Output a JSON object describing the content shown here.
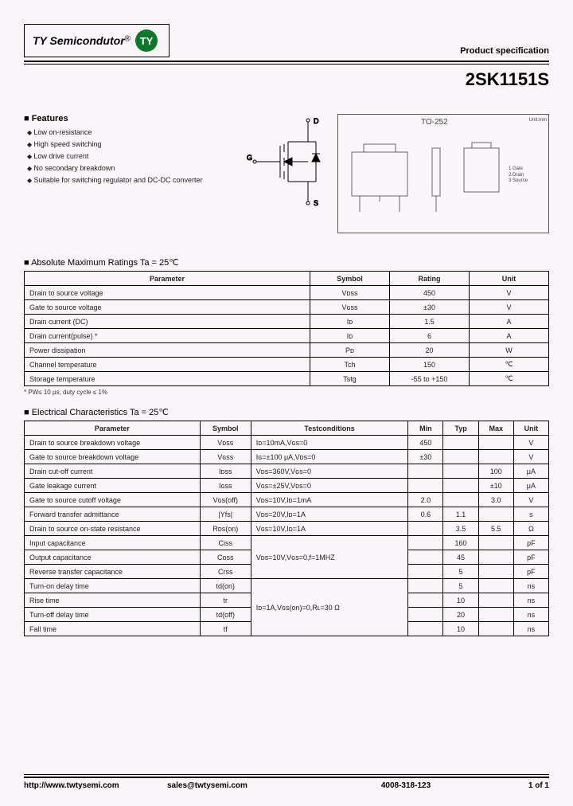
{
  "header": {
    "company": "TY Semicondutor",
    "reg_mark": "®",
    "logo_abbrev": "TY",
    "spec_label": "Product specification",
    "part_number": "2SK1151S"
  },
  "features": {
    "title": "Features",
    "items": [
      "Low on-resistance",
      "High speed switching",
      "Low drive current",
      "No secondary breakdown",
      "Suitable for switching regulator and DC-DC converter"
    ]
  },
  "symbol": {
    "d": "D",
    "g": "G",
    "s": "S"
  },
  "package": {
    "name": "TO-252",
    "unit_label": "Unit:mm",
    "pins": [
      {
        "n": "1",
        "name": "Gate"
      },
      {
        "n": "2",
        "name": "Drain"
      },
      {
        "n": "3",
        "name": "Source"
      }
    ]
  },
  "abs": {
    "title": "Absolute Maximum Ratings Ta = 25℃",
    "headers": [
      "Parameter",
      "Symbol",
      "Rating",
      "Unit"
    ],
    "rows": [
      [
        "Drain to source voltage",
        "Vᴅss",
        "450",
        "V"
      ],
      [
        "Gate to source voltage",
        "Vɢss",
        "±30",
        "V"
      ],
      [
        "Drain current (DC)",
        "Iᴅ",
        "1.5",
        "A"
      ],
      [
        "Drain current(pulse) *",
        "Iᴅ",
        "6",
        "A"
      ],
      [
        "Power dissipation",
        "Pᴅ",
        "20",
        "W"
      ],
      [
        "Channel temperature",
        "Tch",
        "150",
        "℃"
      ],
      [
        "Storage temperature",
        "Tstg",
        "-55 to +150",
        "℃"
      ]
    ],
    "note": "*  PW≤ 10 μs, duty cycle ≤ 1%"
  },
  "elec": {
    "title": "Electrical Characteristics Ta = 25℃",
    "headers": [
      "Parameter",
      "Symbol",
      "Testconditions",
      "Min",
      "Typ",
      "Max",
      "Unit"
    ],
    "rows": [
      {
        "p": "Drain to source breakdown voltage",
        "s": "Vᴅss",
        "tc": "Iᴅ=10mA,Vɢs=0",
        "min": "450",
        "typ": "",
        "max": "",
        "u": "V"
      },
      {
        "p": "Gate to source breakdown voltage",
        "s": "Vɢss",
        "tc": "Iɢ=±100 μA,Vᴅs=0",
        "min": "±30",
        "typ": "",
        "max": "",
        "u": "V"
      },
      {
        "p": "Drain cut-off current",
        "s": "Iᴅss",
        "tc": "Vᴅs=360V,Vɢs=0",
        "min": "",
        "typ": "",
        "max": "100",
        "u": "μA"
      },
      {
        "p": "Gate leakage current",
        "s": "Iɢss",
        "tc": "Vɢs=±25V,Vᴅs=0",
        "min": "",
        "typ": "",
        "max": "±10",
        "u": "μA"
      },
      {
        "p": "Gate to source cutoff voltage",
        "s": "Vɢs(off)",
        "tc": "Vᴅs=10V,Iᴅ=1mA",
        "min": "2.0",
        "typ": "",
        "max": "3.0",
        "u": "V"
      },
      {
        "p": "Forward transfer admittance",
        "s": "|Yfs|",
        "tc": "Vᴅs=20V,Iᴅ=1A",
        "min": "0.6",
        "typ": "1.1",
        "max": "",
        "u": "s"
      },
      {
        "p": "Drain to source on-state resistance",
        "s": "Rᴅs(on)",
        "tc": "Vɢs=10V,Iᴅ=1A",
        "min": "",
        "typ": "3.5",
        "max": "5.5",
        "u": "Ω"
      },
      {
        "p": "Input capacitance",
        "s": "Ciss",
        "tc": "",
        "min": "",
        "typ": "160",
        "max": "",
        "u": "pF"
      },
      {
        "p": "Output capacitance",
        "s": "Coss",
        "tc": "Vᴅs=10V,Vɢs=0,f=1MHZ",
        "min": "",
        "typ": "45",
        "max": "",
        "u": "pF"
      },
      {
        "p": "Reverse transfer capacitance",
        "s": "Crss",
        "tc": "",
        "min": "",
        "typ": "5",
        "max": "",
        "u": "pF"
      },
      {
        "p": "Turn-on delay time",
        "s": "td(on)",
        "tc": "",
        "min": "",
        "typ": "5",
        "max": "",
        "u": "ns"
      },
      {
        "p": "Rise time",
        "s": "tr",
        "tc": "Iᴅ=1A,Vɢs(on)=0,Rʟ=30 Ω",
        "min": "",
        "typ": "10",
        "max": "",
        "u": "ns"
      },
      {
        "p": "Turn-off delay time",
        "s": "td(off)",
        "tc": "",
        "min": "",
        "typ": "20",
        "max": "",
        "u": "ns"
      },
      {
        "p": "Fall time",
        "s": "tf",
        "tc": "",
        "min": "",
        "typ": "10",
        "max": "",
        "u": "ns"
      }
    ],
    "tc_groups": [
      {
        "start": 7,
        "span": 3
      },
      {
        "start": 10,
        "span": 4
      }
    ]
  },
  "footer": {
    "url": "http://www.twtysemi.com",
    "email": "sales@twtysemi.com",
    "phone": "4008-318-123",
    "page": "1 of 1"
  },
  "colors": {
    "bg": "#f9f5f9",
    "logo_green": "#0a7a2a",
    "text": "#000000",
    "border": "#000000"
  }
}
